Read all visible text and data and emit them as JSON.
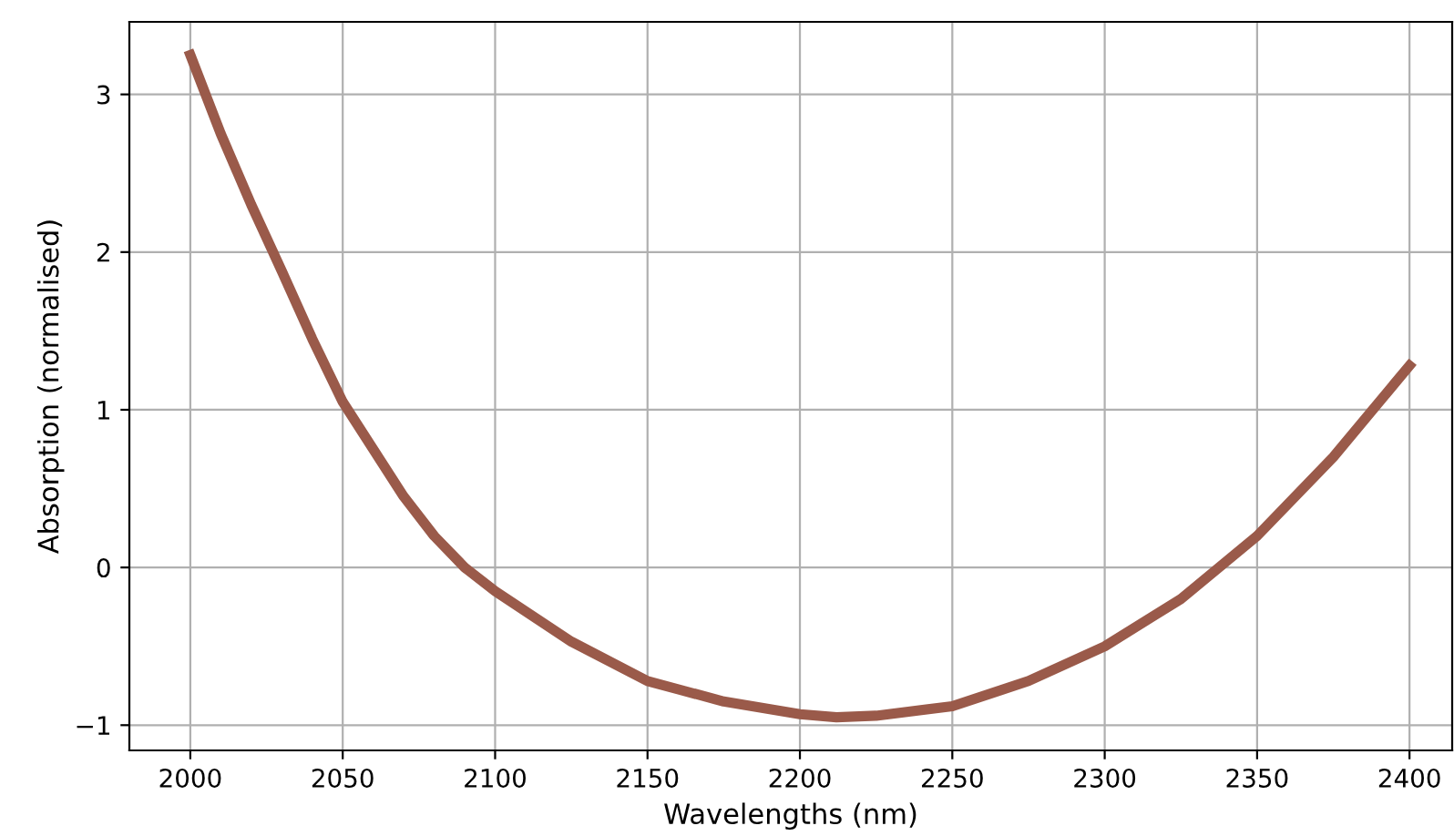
{
  "chart_data": {
    "type": "line",
    "xlabel": "Wavelengths (nm)",
    "ylabel": "Absorption (normalised)",
    "x": [
      2000,
      2010,
      2020,
      2030,
      2040,
      2050,
      2060,
      2070,
      2080,
      2090,
      2100,
      2125,
      2150,
      2175,
      2200,
      2212,
      2225,
      2250,
      2275,
      2300,
      2325,
      2350,
      2375,
      2400
    ],
    "series": [
      {
        "color": "#9a5a4a",
        "values": [
          3.25,
          2.75,
          2.3,
          1.88,
          1.45,
          1.05,
          0.75,
          0.45,
          0.2,
          0.0,
          -0.15,
          -0.47,
          -0.72,
          -0.85,
          -0.93,
          -0.95,
          -0.94,
          -0.88,
          -0.72,
          -0.5,
          -0.2,
          0.2,
          0.7,
          1.28
        ]
      }
    ],
    "xlim": [
      1980,
      2414
    ],
    "xticks": [
      2000,
      2050,
      2100,
      2150,
      2200,
      2250,
      2300,
      2350,
      2400
    ],
    "ylim": [
      -1.16,
      3.46
    ],
    "yticks": [
      {
        "value": -1,
        "label": "−1"
      },
      0,
      1,
      2,
      3
    ],
    "grid": true,
    "line_style": "solid"
  }
}
